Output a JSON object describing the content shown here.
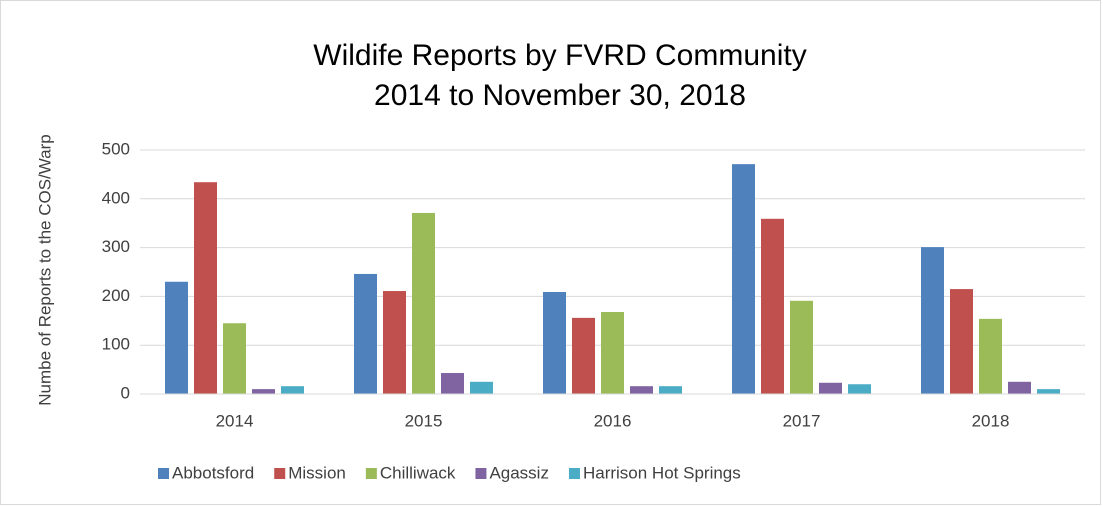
{
  "chart_data": {
    "type": "bar",
    "title": "Wildife Reports by FVRD Community",
    "subtitle": "2014 to November 30, 2018",
    "y_label": "Numbe of Reports to the COS/Warp",
    "categories": [
      "2014",
      "2015",
      "2016",
      "2017",
      "2018"
    ],
    "series": [
      {
        "name": "Abbotsford",
        "color": "#4f81bd",
        "values": [
          230,
          246,
          209,
          471,
          301
        ]
      },
      {
        "name": "Mission",
        "color": "#c0504d",
        "values": [
          434,
          211,
          156,
          359,
          215
        ]
      },
      {
        "name": "Chilliwack",
        "color": "#9bbb59",
        "values": [
          145,
          371,
          168,
          191,
          154
        ]
      },
      {
        "name": "Agassiz",
        "color": "#8064a2",
        "values": [
          10,
          43,
          16,
          23,
          25
        ]
      },
      {
        "name": "Harrison Hot Springs",
        "color": "#4bacc6",
        "values": [
          16,
          25,
          16,
          20,
          10
        ]
      }
    ],
    "ylim": [
      0,
      500
    ],
    "yticks": [
      0,
      100,
      200,
      300,
      400,
      500
    ],
    "grid": true,
    "legend": "bottom"
  }
}
